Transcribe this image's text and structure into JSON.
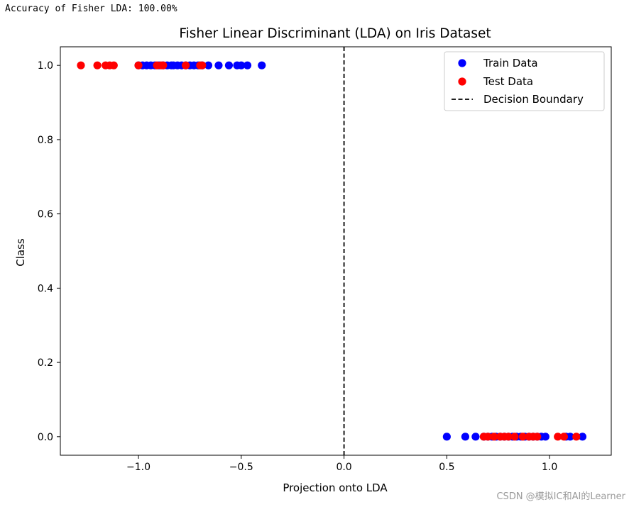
{
  "console": {
    "output_line": "Accuracy of Fisher LDA: 100.00%"
  },
  "watermark": "CSDN @模拟IC和AI的Learner",
  "chart_data": {
    "type": "scatter",
    "title": "Fisher Linear Discriminant (LDA) on Iris Dataset",
    "xlabel": "Projection onto LDA",
    "ylabel": "Class",
    "xlim": [
      -1.38,
      1.3
    ],
    "ylim": [
      -0.05,
      1.05
    ],
    "xticks": [
      -1.0,
      -0.5,
      0.0,
      0.5,
      1.0
    ],
    "xtick_labels": [
      "−1.0",
      "−0.5",
      "0.0",
      "0.5",
      "1.0"
    ],
    "yticks": [
      0.0,
      0.2,
      0.4,
      0.6,
      0.8,
      1.0
    ],
    "ytick_labels": [
      "0.0",
      "0.2",
      "0.4",
      "0.6",
      "0.8",
      "1.0"
    ],
    "grid": false,
    "legend_position": "top-right",
    "series": [
      {
        "name": "Train Data",
        "color": "#0000ff",
        "marker": "circle",
        "points": [
          {
            "x": -1.0,
            "y": 1
          },
          {
            "x": -0.98,
            "y": 1
          },
          {
            "x": -0.96,
            "y": 1
          },
          {
            "x": -0.94,
            "y": 1
          },
          {
            "x": -0.92,
            "y": 1
          },
          {
            "x": -0.9,
            "y": 1
          },
          {
            "x": -0.88,
            "y": 1
          },
          {
            "x": -0.86,
            "y": 1
          },
          {
            "x": -0.84,
            "y": 1
          },
          {
            "x": -0.83,
            "y": 1
          },
          {
            "x": -0.81,
            "y": 1
          },
          {
            "x": -0.79,
            "y": 1
          },
          {
            "x": -0.77,
            "y": 1
          },
          {
            "x": -0.75,
            "y": 1
          },
          {
            "x": -0.73,
            "y": 1
          },
          {
            "x": -0.71,
            "y": 1
          },
          {
            "x": -0.69,
            "y": 1
          },
          {
            "x": -0.66,
            "y": 1
          },
          {
            "x": -0.61,
            "y": 1
          },
          {
            "x": -0.56,
            "y": 1
          },
          {
            "x": -0.52,
            "y": 1
          },
          {
            "x": -0.5,
            "y": 1
          },
          {
            "x": -0.47,
            "y": 1
          },
          {
            "x": -0.4,
            "y": 1
          },
          {
            "x": 0.5,
            "y": 0
          },
          {
            "x": 0.59,
            "y": 0
          },
          {
            "x": 0.64,
            "y": 0
          },
          {
            "x": 0.68,
            "y": 0
          },
          {
            "x": 0.7,
            "y": 0
          },
          {
            "x": 0.72,
            "y": 0
          },
          {
            "x": 0.74,
            "y": 0
          },
          {
            "x": 0.76,
            "y": 0
          },
          {
            "x": 0.78,
            "y": 0
          },
          {
            "x": 0.8,
            "y": 0
          },
          {
            "x": 0.82,
            "y": 0
          },
          {
            "x": 0.84,
            "y": 0
          },
          {
            "x": 0.86,
            "y": 0
          },
          {
            "x": 0.88,
            "y": 0
          },
          {
            "x": 0.9,
            "y": 0
          },
          {
            "x": 0.92,
            "y": 0
          },
          {
            "x": 0.94,
            "y": 0
          },
          {
            "x": 0.96,
            "y": 0
          },
          {
            "x": 0.98,
            "y": 0
          },
          {
            "x": 1.08,
            "y": 0
          },
          {
            "x": 1.1,
            "y": 0
          },
          {
            "x": 1.16,
            "y": 0
          }
        ]
      },
      {
        "name": "Test Data",
        "color": "#ff0000",
        "marker": "circle",
        "points": [
          {
            "x": -1.28,
            "y": 1
          },
          {
            "x": -1.2,
            "y": 1
          },
          {
            "x": -1.16,
            "y": 1
          },
          {
            "x": -1.14,
            "y": 1
          },
          {
            "x": -1.12,
            "y": 1
          },
          {
            "x": -1.0,
            "y": 1
          },
          {
            "x": -0.91,
            "y": 1
          },
          {
            "x": -0.89,
            "y": 1
          },
          {
            "x": -0.88,
            "y": 1
          },
          {
            "x": -0.77,
            "y": 1
          },
          {
            "x": -0.7,
            "y": 1
          },
          {
            "x": -0.69,
            "y": 1
          },
          {
            "x": 0.68,
            "y": 0
          },
          {
            "x": 0.7,
            "y": 0
          },
          {
            "x": 0.73,
            "y": 0
          },
          {
            "x": 0.76,
            "y": 0
          },
          {
            "x": 0.78,
            "y": 0
          },
          {
            "x": 0.8,
            "y": 0
          },
          {
            "x": 0.83,
            "y": 0
          },
          {
            "x": 0.87,
            "y": 0
          },
          {
            "x": 0.9,
            "y": 0
          },
          {
            "x": 0.92,
            "y": 0
          },
          {
            "x": 0.94,
            "y": 0
          },
          {
            "x": 1.04,
            "y": 0
          },
          {
            "x": 1.07,
            "y": 0
          },
          {
            "x": 1.13,
            "y": 0
          }
        ]
      }
    ],
    "reference_lines": [
      {
        "name": "Decision Boundary",
        "orientation": "vertical",
        "x": 0.0,
        "style": "dashed",
        "color": "#000000"
      }
    ]
  }
}
